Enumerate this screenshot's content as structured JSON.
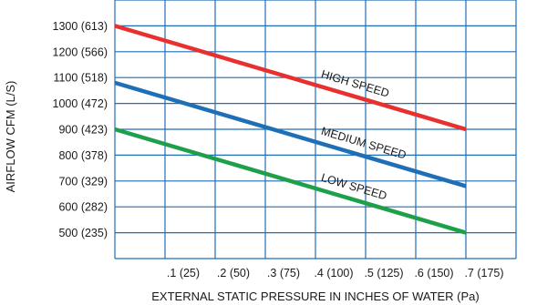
{
  "chart_data": {
    "type": "line",
    "title": "",
    "xlabel": "EXTERNAL STATIC PRESSURE IN INCHES OF WATER (Pa)",
    "ylabel": "AIRFLOW CFM (L/S)",
    "xlim": [
      0,
      0.8
    ],
    "ylim": [
      400,
      1400
    ],
    "grid": true,
    "legend": "none",
    "x_ticks": [
      {
        "value": 0.1,
        "label": ".1 (25)"
      },
      {
        "value": 0.2,
        "label": ".2 (50)"
      },
      {
        "value": 0.3,
        "label": ".3 (75)"
      },
      {
        "value": 0.4,
        "label": ".4 (100)"
      },
      {
        "value": 0.5,
        "label": ".5 (125)"
      },
      {
        "value": 0.6,
        "label": ".6 (150)"
      },
      {
        "value": 0.7,
        "label": ".7 (175)"
      }
    ],
    "y_ticks": [
      {
        "value": 500,
        "label": "500 (235)"
      },
      {
        "value": 600,
        "label": "600 (282)"
      },
      {
        "value": 700,
        "label": "700 (329)"
      },
      {
        "value": 800,
        "label": "800 (378)"
      },
      {
        "value": 900,
        "label": "900 (423)"
      },
      {
        "value": 1000,
        "label": "1000 (472)"
      },
      {
        "value": 1100,
        "label": "1100 (518)"
      },
      {
        "value": 1200,
        "label": "1200 (566)"
      },
      {
        "value": 1300,
        "label": "1300 (613)"
      }
    ],
    "series": [
      {
        "name": "HIGH SPEED",
        "color": "#e8302e",
        "x": [
          0,
          0.7
        ],
        "y": [
          1300,
          900
        ]
      },
      {
        "name": "MEDIUM SPEED",
        "color": "#1f6fb6",
        "x": [
          0,
          0.7
        ],
        "y": [
          1080,
          680
        ]
      },
      {
        "name": "LOW SPEED",
        "color": "#1ea04a",
        "x": [
          0,
          0.7
        ],
        "y": [
          900,
          500
        ]
      }
    ]
  }
}
